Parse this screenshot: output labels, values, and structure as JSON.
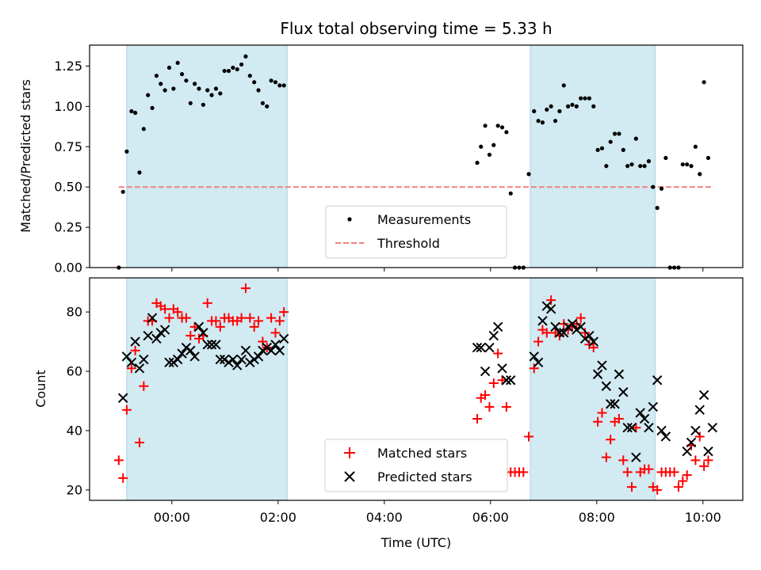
{
  "figure_title": "Flux total observing time = 5.33 h",
  "chart_data": [
    {
      "type": "scatter",
      "ylabel": "Matched/Predicted stars",
      "xlim": [
        -1.55,
        10.75
      ],
      "ylim": [
        0,
        1.38
      ],
      "yticks": [
        "0.00",
        "0.25",
        "0.50",
        "0.75",
        "1.00",
        "1.25"
      ],
      "ytick_values": [
        0,
        0.25,
        0.5,
        0.75,
        1.0,
        1.25
      ],
      "xticks_hours": [
        0,
        2,
        4,
        6,
        8,
        10
      ],
      "shaded_spans": [
        [
          -0.85,
          2.17
        ],
        [
          6.75,
          9.1
        ]
      ],
      "shade_color": "#add8e6",
      "legend": {
        "placement": "lower-center",
        "entries": [
          "Measurements",
          "Threshold"
        ]
      },
      "threshold": {
        "name": "Threshold",
        "value": 0.5,
        "x_range": [
          -1.0,
          10.2
        ],
        "color": "#f08080"
      },
      "measurements": {
        "name": "Measurements",
        "color": "#000000",
        "x": [
          -1.0,
          -0.92,
          -0.85,
          -0.76,
          -0.69,
          -0.61,
          -0.53,
          -0.45,
          -0.37,
          -0.29,
          -0.21,
          -0.13,
          -0.05,
          0.03,
          0.11,
          0.19,
          0.27,
          0.35,
          0.43,
          0.51,
          0.59,
          0.67,
          0.75,
          0.83,
          0.91,
          0.99,
          1.07,
          1.15,
          1.23,
          1.31,
          1.39,
          1.47,
          1.55,
          1.63,
          1.71,
          1.79,
          1.87,
          1.95,
          2.03,
          2.11,
          5.75,
          5.82,
          5.9,
          5.98,
          6.06,
          6.14,
          6.22,
          6.3,
          6.38,
          6.46,
          6.54,
          6.62,
          6.72,
          6.82,
          6.9,
          6.98,
          7.06,
          7.14,
          7.22,
          7.3,
          7.38,
          7.46,
          7.54,
          7.62,
          7.7,
          7.78,
          7.86,
          7.94,
          8.02,
          8.1,
          8.18,
          8.26,
          8.34,
          8.42,
          8.5,
          8.58,
          8.66,
          8.74,
          8.82,
          8.9,
          8.98,
          9.06,
          9.14,
          9.22,
          9.3,
          9.38,
          9.46,
          9.54,
          9.62,
          9.7,
          9.78,
          9.86,
          9.94,
          10.02,
          10.1
        ],
        "y": [
          0.0,
          0.47,
          0.72,
          0.97,
          0.96,
          0.59,
          0.86,
          1.07,
          0.99,
          1.19,
          1.14,
          1.1,
          1.24,
          1.11,
          1.27,
          1.2,
          1.16,
          1.02,
          1.14,
          1.11,
          1.01,
          1.1,
          1.07,
          1.11,
          1.08,
          1.22,
          1.22,
          1.24,
          1.23,
          1.26,
          1.31,
          1.19,
          1.15,
          1.1,
          1.02,
          1.0,
          1.16,
          1.15,
          1.13,
          1.13,
          0.65,
          0.75,
          0.88,
          0.7,
          0.76,
          0.88,
          0.87,
          0.84,
          0.46,
          0.0,
          0.0,
          0.0,
          0.58,
          0.97,
          0.91,
          0.9,
          0.98,
          1.0,
          0.91,
          0.97,
          1.13,
          1.0,
          1.01,
          1.0,
          1.05,
          1.05,
          1.05,
          1.0,
          0.73,
          0.74,
          0.63,
          0.78,
          0.83,
          0.83,
          0.73,
          0.63,
          0.64,
          0.8,
          0.63,
          0.63,
          0.66,
          0.5,
          0.37,
          0.49,
          0.68,
          0.0,
          0.0,
          0.0,
          0.64,
          0.64,
          0.63,
          0.75,
          0.58,
          1.15,
          0.68
        ]
      }
    },
    {
      "type": "scatter",
      "xlabel": "Time (UTC)",
      "ylabel": "Count",
      "xlim": [
        -1.55,
        10.75
      ],
      "ylim": [
        16.5,
        91.5
      ],
      "yticks": [
        "20",
        "40",
        "60",
        "80"
      ],
      "ytick_values": [
        20,
        40,
        60,
        80
      ],
      "xticks": [
        "00:00",
        "02:00",
        "04:00",
        "06:00",
        "08:00",
        "10:00"
      ],
      "xticks_hours": [
        0,
        2,
        4,
        6,
        8,
        10
      ],
      "shaded_spans": [
        [
          -0.85,
          2.17
        ],
        [
          6.75,
          9.1
        ]
      ],
      "shade_color": "#add8e6",
      "legend": {
        "placement": "lower-center",
        "entries": [
          "Matched stars",
          "Predicted stars"
        ]
      },
      "series": [
        {
          "name": "Matched stars",
          "marker": "plus",
          "color": "#ff0000",
          "x": [
            -1.0,
            -0.92,
            -0.85,
            -0.76,
            -0.69,
            -0.61,
            -0.53,
            -0.45,
            -0.37,
            -0.29,
            -0.21,
            -0.13,
            -0.05,
            0.03,
            0.11,
            0.19,
            0.27,
            0.35,
            0.43,
            0.51,
            0.59,
            0.67,
            0.75,
            0.83,
            0.91,
            0.99,
            1.07,
            1.15,
            1.23,
            1.31,
            1.39,
            1.47,
            1.55,
            1.63,
            1.71,
            1.79,
            1.87,
            1.95,
            2.03,
            2.11,
            5.75,
            5.82,
            5.9,
            5.98,
            6.06,
            6.14,
            6.22,
            6.3,
            6.38,
            6.46,
            6.54,
            6.62,
            6.72,
            6.82,
            6.9,
            6.98,
            7.06,
            7.14,
            7.22,
            7.3,
            7.38,
            7.46,
            7.54,
            7.62,
            7.7,
            7.78,
            7.86,
            7.94,
            8.02,
            8.1,
            8.18,
            8.26,
            8.34,
            8.42,
            8.5,
            8.58,
            8.66,
            8.74,
            8.82,
            8.9,
            8.98,
            9.06,
            9.14,
            9.22,
            9.3,
            9.38,
            9.46,
            9.54,
            9.62,
            9.7,
            9.78,
            9.86,
            9.94,
            10.02,
            10.1
          ],
          "y": [
            30,
            24,
            47,
            61,
            67,
            36,
            55,
            77,
            77,
            83,
            82,
            81,
            78,
            81,
            80,
            78,
            78,
            72,
            75,
            71,
            72,
            83,
            77,
            77,
            75,
            78,
            78,
            77,
            77,
            78,
            88,
            78,
            75,
            77,
            70,
            68,
            78,
            73,
            77,
            80,
            44,
            51,
            52,
            48,
            56,
            66,
            57,
            48,
            26,
            26,
            26,
            26,
            38,
            61,
            70,
            74,
            73,
            84,
            73,
            72,
            76,
            74,
            75,
            76,
            78,
            73,
            69,
            68,
            43,
            46,
            31,
            37,
            43,
            44,
            30,
            26,
            21,
            41,
            26,
            27,
            27,
            21,
            20,
            26,
            26,
            26,
            26,
            21,
            23,
            25,
            35,
            30,
            38,
            28,
            30
          ]
        },
        {
          "name": "Predicted stars",
          "marker": "x",
          "color": "#000000",
          "x": [
            -0.92,
            -0.85,
            -0.76,
            -0.69,
            -0.61,
            -0.53,
            -0.45,
            -0.37,
            -0.29,
            -0.21,
            -0.13,
            -0.05,
            0.03,
            0.11,
            0.19,
            0.27,
            0.35,
            0.43,
            0.51,
            0.59,
            0.67,
            0.75,
            0.83,
            0.91,
            0.99,
            1.07,
            1.15,
            1.23,
            1.31,
            1.39,
            1.47,
            1.55,
            1.63,
            1.71,
            1.79,
            1.87,
            1.95,
            2.03,
            2.11,
            5.75,
            5.82,
            5.9,
            5.98,
            6.06,
            6.14,
            6.22,
            6.3,
            6.38,
            6.82,
            6.9,
            6.98,
            7.06,
            7.14,
            7.22,
            7.3,
            7.38,
            7.46,
            7.54,
            7.62,
            7.7,
            7.78,
            7.86,
            7.94,
            8.02,
            8.1,
            8.18,
            8.26,
            8.34,
            8.42,
            8.5,
            8.58,
            8.66,
            8.74,
            8.82,
            8.9,
            8.98,
            9.06,
            9.14,
            9.22,
            9.3,
            9.7,
            9.78,
            9.86,
            9.94,
            10.02,
            10.1,
            10.18
          ],
          "y": [
            51,
            65,
            63,
            70,
            61,
            64,
            72,
            78,
            71,
            73,
            74,
            63,
            63,
            64,
            66,
            68,
            67,
            65,
            75,
            73,
            69,
            69,
            69,
            64,
            64,
            63,
            64,
            62,
            64,
            67,
            63,
            64,
            65,
            67,
            68,
            67,
            69,
            67,
            71,
            68,
            68,
            60,
            68,
            72,
            75,
            61,
            57,
            57,
            65,
            63,
            77,
            82,
            81,
            75,
            73,
            73,
            75,
            76,
            74,
            75,
            71,
            72,
            70,
            59,
            62,
            55,
            49,
            49,
            59,
            53,
            41,
            41,
            31,
            46,
            44,
            41,
            48,
            57,
            40,
            38,
            33,
            36,
            40,
            47,
            52,
            33,
            41
          ]
        }
      ]
    }
  ]
}
